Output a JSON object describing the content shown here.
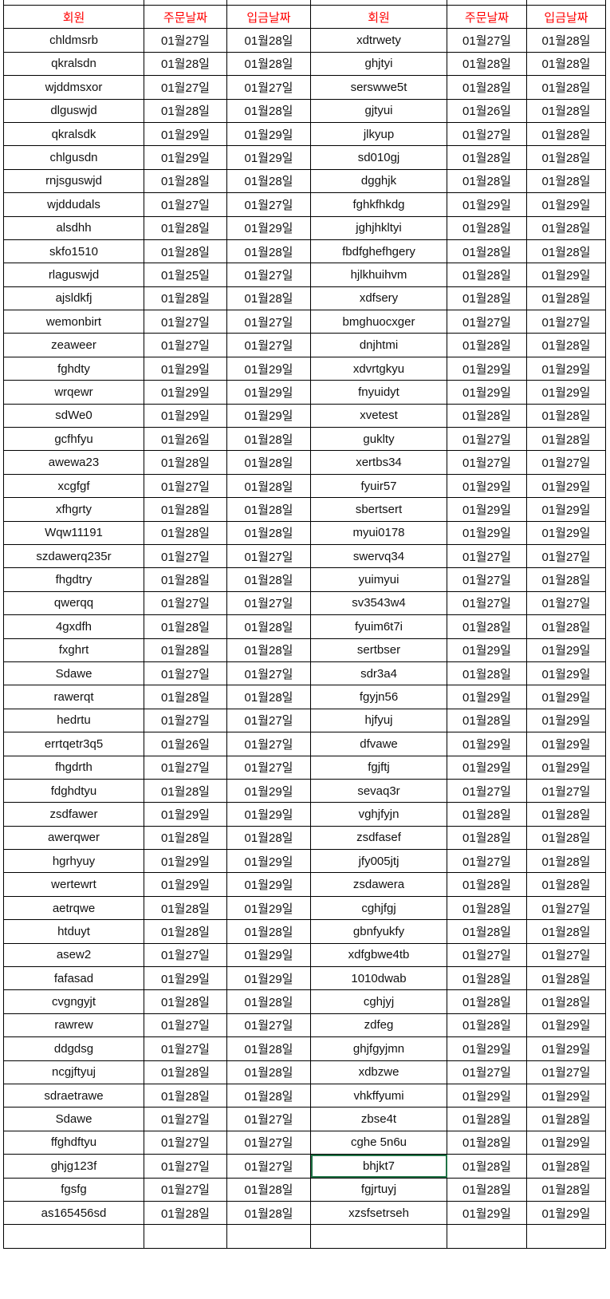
{
  "headers": [
    "회원",
    "주문날짜",
    "입금날짜",
    "회원",
    "주문날짜",
    "입금날짜"
  ],
  "header_color": "#ff0000",
  "selection_color": "#217346",
  "selected_cell": {
    "row": 48,
    "column": 3
  },
  "rows": [
    [
      "chldmsrb",
      "01월27일",
      "01월28일",
      "xdtrwety",
      "01월27일",
      "01월28일"
    ],
    [
      "qkralsdn",
      "01월28일",
      "01월28일",
      "ghjtyi",
      "01월28일",
      "01월28일"
    ],
    [
      "wjddmsxor",
      "01월27일",
      "01월27일",
      "serswwe5t",
      "01월28일",
      "01월28일"
    ],
    [
      "dlguswjd",
      "01월28일",
      "01월28일",
      "gjtyui",
      "01월26일",
      "01월28일"
    ],
    [
      "qkralsdk",
      "01월29일",
      "01월29일",
      "jlkyup",
      "01월27일",
      "01월28일"
    ],
    [
      "chlgusdn",
      "01월29일",
      "01월29일",
      "sd010gj",
      "01월28일",
      "01월28일"
    ],
    [
      "rnjsguswjd",
      "01월28일",
      "01월28일",
      "dgghjk",
      "01월28일",
      "01월28일"
    ],
    [
      "wjddudals",
      "01월27일",
      "01월27일",
      "fghkfhkdg",
      "01월29일",
      "01월29일"
    ],
    [
      "alsdhh",
      "01월28일",
      "01월29일",
      "jghjhkltyi",
      "01월28일",
      "01월28일"
    ],
    [
      "skfo1510",
      "01월28일",
      "01월28일",
      "fbdfghefhgery",
      "01월28일",
      "01월28일"
    ],
    [
      "rlaguswjd",
      "01월25일",
      "01월27일",
      "hjlkhuihvm",
      "01월28일",
      "01월29일"
    ],
    [
      "ajsldkfj",
      "01월28일",
      "01월28일",
      "xdfsery",
      "01월28일",
      "01월28일"
    ],
    [
      "wemonbirt",
      "01월27일",
      "01월27일",
      "bmghuocxger",
      "01월27일",
      "01월27일"
    ],
    [
      "zeaweer",
      "01월27일",
      "01월27일",
      "dnjhtmi",
      "01월28일",
      "01월28일"
    ],
    [
      "fghdty",
      "01월29일",
      "01월29일",
      "xdvrtgkyu",
      "01월29일",
      "01월29일"
    ],
    [
      "wrqewr",
      "01월29일",
      "01월29일",
      "fnyuidyt",
      "01월29일",
      "01월29일"
    ],
    [
      "sdWe0",
      "01월29일",
      "01월29일",
      "xvetest",
      "01월28일",
      "01월28일"
    ],
    [
      "gcfhfyu",
      "01월26일",
      "01월28일",
      "guklty",
      "01월27일",
      "01월28일"
    ],
    [
      "awewa23",
      "01월28일",
      "01월28일",
      "xertbs34",
      "01월27일",
      "01월27일"
    ],
    [
      "xcgfgf",
      "01월27일",
      "01월28일",
      "fyuir57",
      "01월29일",
      "01월29일"
    ],
    [
      "xfhgrty",
      "01월28일",
      "01월28일",
      "sbertsert",
      "01월29일",
      "01월29일"
    ],
    [
      "Wqw11191",
      "01월28일",
      "01월28일",
      "myui0178",
      "01월29일",
      "01월29일"
    ],
    [
      "szdawerq235r",
      "01월27일",
      "01월27일",
      "swervq34",
      "01월27일",
      "01월27일"
    ],
    [
      "fhgdtry",
      "01월28일",
      "01월28일",
      "yuimyui",
      "01월27일",
      "01월28일"
    ],
    [
      "qwerqq",
      "01월27일",
      "01월27일",
      "sv3543w4",
      "01월27일",
      "01월27일"
    ],
    [
      "4gxdfh",
      "01월28일",
      "01월28일",
      "fyuim6t7i",
      "01월28일",
      "01월28일"
    ],
    [
      "fxghrt",
      "01월28일",
      "01월28일",
      "sertbser",
      "01월29일",
      "01월29일"
    ],
    [
      "Sdawe",
      "01월27일",
      "01월27일",
      "sdr3a4",
      "01월28일",
      "01월29일"
    ],
    [
      "rawerqt",
      "01월28일",
      "01월28일",
      "fgyjn56",
      "01월29일",
      "01월29일"
    ],
    [
      "hedrtu",
      "01월27일",
      "01월27일",
      "hjfyuj",
      "01월28일",
      "01월29일"
    ],
    [
      "errtqetr3q5",
      "01월26일",
      "01월27일",
      "dfvawe",
      "01월29일",
      "01월29일"
    ],
    [
      "fhgdrth",
      "01월27일",
      "01월27일",
      "fgjftj",
      "01월29일",
      "01월29일"
    ],
    [
      "fdghdtyu",
      "01월28일",
      "01월29일",
      "sevaq3r",
      "01월27일",
      "01월27일"
    ],
    [
      "zsdfawer",
      "01월29일",
      "01월29일",
      "vghjfyjn",
      "01월28일",
      "01월28일"
    ],
    [
      "awerqwer",
      "01월28일",
      "01월28일",
      "zsdfasef",
      "01월28일",
      "01월28일"
    ],
    [
      "hgrhyuy",
      "01월29일",
      "01월29일",
      "jfy005jtj",
      "01월27일",
      "01월28일"
    ],
    [
      "wertewrt",
      "01월29일",
      "01월29일",
      "zsdawera",
      "01월28일",
      "01월28일"
    ],
    [
      "aetrqwe",
      "01월28일",
      "01월29일",
      "cghjfgj",
      "01월28일",
      "01월27일"
    ],
    [
      "htduyt",
      "01월28일",
      "01월28일",
      "gbnfyukfy",
      "01월28일",
      "01월28일"
    ],
    [
      "asew2",
      "01월27일",
      "01월29일",
      "xdfgbwe4tb",
      "01월27일",
      "01월27일"
    ],
    [
      "fafasad",
      "01월29일",
      "01월29일",
      "1010dwab",
      "01월28일",
      "01월28일"
    ],
    [
      "cvgngyjt",
      "01월28일",
      "01월28일",
      "cghjyj",
      "01월28일",
      "01월28일"
    ],
    [
      "rawrew",
      "01월27일",
      "01월27일",
      "zdfeg",
      "01월28일",
      "01월29일"
    ],
    [
      "ddgdsg",
      "01월27일",
      "01월28일",
      "ghjfgyjmn",
      "01월29일",
      "01월29일"
    ],
    [
      "ncgjftyuj",
      "01월28일",
      "01월28일",
      "xdbzwe",
      "01월27일",
      "01월27일"
    ],
    [
      "sdraetrawe",
      "01월28일",
      "01월28일",
      "vhkffyumi",
      "01월29일",
      "01월29일"
    ],
    [
      "Sdawe",
      "01월27일",
      "01월27일",
      "zbse4t",
      "01월28일",
      "01월28일"
    ],
    [
      "ffghdftyu",
      "01월27일",
      "01월27일",
      "cghe 5n6u",
      "01월28일",
      "01월29일"
    ],
    [
      "ghjg123f",
      "01월27일",
      "01월27일",
      "bhjkt7",
      "01월28일",
      "01월28일"
    ],
    [
      "fgsfg",
      "01월27일",
      "01월28일",
      "fgjrtuyj",
      "01월28일",
      "01월28일"
    ],
    [
      "as165456sd",
      "01월28일",
      "01월28일",
      "xzsfsetrseh",
      "01월29일",
      "01월29일"
    ]
  ]
}
